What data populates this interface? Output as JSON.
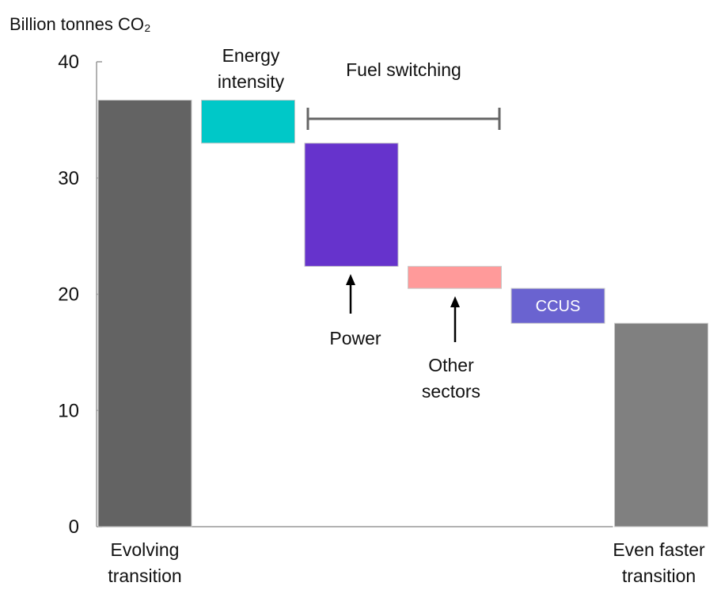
{
  "chart_data": {
    "type": "waterfall",
    "title": "Billion tonnes CO₂",
    "annotations": [
      "Fuel switching"
    ],
    "categories": [
      "Evolving transition",
      "Energy intensity",
      "Power",
      "Other sectors",
      "CCUS",
      "Even faster transition"
    ],
    "values": [
      36.7,
      -3.7,
      -10.6,
      -1.9,
      -3.0,
      17.5
    ],
    "totals": [
      true,
      false,
      false,
      false,
      false,
      true
    ],
    "colors": [
      "#636363",
      "#00c8c8",
      "#6633cc",
      "#ff9a9a",
      "#6a63d0",
      "#808080"
    ],
    "ylim": [
      0,
      40
    ],
    "yticks": [
      0,
      10,
      20,
      30,
      40
    ],
    "grid": false
  }
}
